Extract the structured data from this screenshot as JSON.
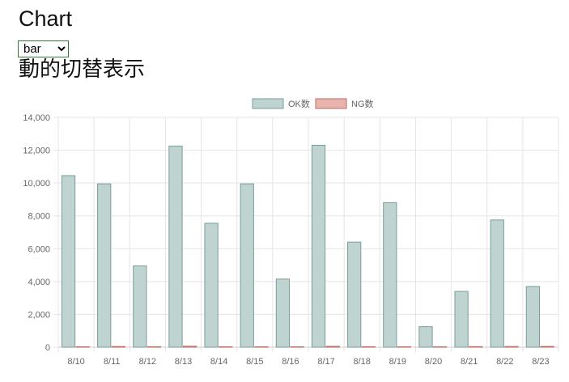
{
  "page": {
    "title": "Chart",
    "select_value": "bar",
    "select_options": [
      "bar"
    ],
    "subtitle": "動的切替表示"
  },
  "chart_data": {
    "type": "bar",
    "title": "",
    "xlabel": "",
    "ylabel": "",
    "categories": [
      "8/10",
      "8/11",
      "8/12",
      "8/13",
      "8/14",
      "8/15",
      "8/16",
      "8/17",
      "8/18",
      "8/19",
      "8/20",
      "8/21",
      "8/22",
      "8/23"
    ],
    "series": [
      {
        "name": "OK数",
        "values": [
          10450,
          9950,
          4950,
          12250,
          7550,
          9950,
          4150,
          12300,
          6400,
          8800,
          1250,
          3400,
          7750,
          3700
        ],
        "fill": "#bfd3d0",
        "stroke": "#7a9e98"
      },
      {
        "name": "NG数",
        "values": [
          0,
          40,
          30,
          60,
          10,
          15,
          10,
          50,
          30,
          15,
          20,
          35,
          40,
          45
        ],
        "fill": "#e8b4ae",
        "stroke": "#c06b62"
      }
    ],
    "ylim": [
      0,
      14000
    ],
    "yticks": [
      0,
      2000,
      4000,
      6000,
      8000,
      10000,
      12000,
      14000
    ],
    "ytick_labels": [
      "0",
      "2,000",
      "4,000",
      "6,000",
      "8,000",
      "10,000",
      "12,000",
      "14,000"
    ],
    "grid": true,
    "legend_position": "top"
  },
  "colors": {
    "grid": "#e5e5e5",
    "axis": "#cccccc",
    "text": "#666666"
  }
}
